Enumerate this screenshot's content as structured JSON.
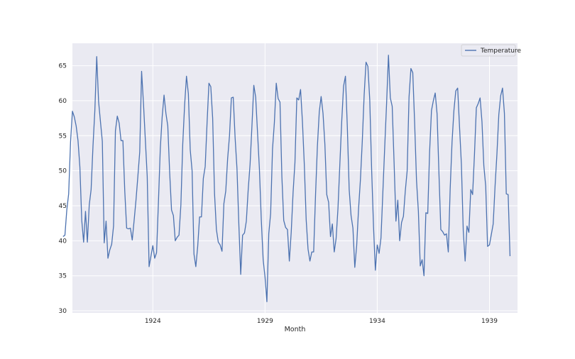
{
  "chart_data": {
    "type": "line",
    "xlabel": "Month",
    "ylabel": "",
    "title": "",
    "grid": true,
    "legend_position": "top-right",
    "xlim": [
      "1920-06",
      "1940-04"
    ],
    "ylim": [
      29.7,
      68.2
    ],
    "x_ticks": [
      {
        "label": "1924",
        "value": "1924-01"
      },
      {
        "label": "1929",
        "value": "1929-01"
      },
      {
        "label": "1934",
        "value": "1934-01"
      },
      {
        "label": "1939",
        "value": "1939-01"
      }
    ],
    "y_ticks": [
      30,
      35,
      40,
      45,
      50,
      55,
      60,
      65
    ],
    "start_month": "1920-01",
    "series": [
      {
        "name": "Temperature",
        "color": "#4c72b0",
        "values": [
          40.6,
          40.8,
          44.4,
          46.7,
          54.1,
          58.5,
          57.7,
          56.4,
          54.3,
          50.5,
          42.9,
          39.8,
          44.2,
          39.8,
          45.1,
          47.3,
          53.5,
          58.6,
          66.3,
          59.9,
          57.0,
          54.2,
          39.7,
          42.8,
          37.5,
          38.7,
          39.5,
          42.1,
          55.7,
          57.8,
          56.8,
          54.3,
          54.3,
          47.1,
          41.8,
          41.7,
          41.8,
          40.1,
          42.9,
          45.8,
          49.2,
          52.7,
          64.2,
          59.6,
          54.4,
          49.2,
          36.3,
          37.8,
          39.3,
          37.5,
          38.3,
          45.5,
          53.2,
          57.7,
          60.8,
          58.2,
          56.4,
          49.8,
          44.4,
          43.6,
          40.0,
          40.5,
          40.8,
          45.1,
          53.8,
          59.4,
          63.5,
          61.0,
          53.0,
          50.0,
          38.1,
          36.3,
          39.2,
          43.4,
          43.4,
          48.9,
          50.6,
          56.8,
          62.5,
          62.0,
          57.5,
          46.7,
          41.6,
          39.8,
          39.4,
          38.5,
          45.3,
          47.1,
          51.7,
          55.0,
          60.4,
          60.5,
          54.7,
          50.3,
          42.3,
          35.2,
          40.8,
          41.1,
          42.8,
          47.3,
          50.9,
          56.4,
          62.2,
          60.5,
          55.4,
          50.2,
          43.0,
          37.3,
          34.8,
          31.3,
          41.0,
          43.9,
          53.1,
          56.9,
          62.5,
          60.3,
          59.8,
          49.2,
          42.9,
          41.9,
          41.6,
          37.1,
          41.2,
          46.9,
          51.2,
          60.4,
          60.1,
          61.6,
          57.0,
          50.9,
          43.0,
          38.8,
          37.1,
          38.4,
          38.4,
          46.5,
          53.5,
          58.4,
          60.6,
          58.2,
          53.8,
          46.6,
          45.5,
          40.6,
          42.4,
          38.4,
          40.3,
          44.6,
          50.9,
          57.0,
          62.1,
          63.5,
          56.3,
          47.3,
          43.6,
          41.8,
          36.2,
          39.3,
          44.5,
          48.7,
          54.2,
          60.8,
          65.5,
          64.9,
          60.1,
          50.2,
          42.1,
          35.8,
          39.4,
          38.2,
          40.4,
          46.9,
          53.4,
          59.6,
          66.5,
          60.4,
          59.2,
          51.2,
          42.8,
          45.8,
          40.0,
          42.6,
          43.5,
          47.1,
          50.0,
          60.5,
          64.6,
          64.0,
          56.8,
          48.6,
          44.2,
          36.4,
          37.3,
          35.0,
          44.0,
          43.9,
          52.7,
          58.6,
          60.0,
          61.1,
          58.1,
          49.6,
          41.6,
          41.3,
          40.8,
          41.0,
          38.4,
          47.4,
          54.1,
          58.6,
          61.4,
          61.8,
          56.3,
          50.9,
          41.4,
          37.1,
          42.1,
          41.2,
          47.3,
          46.6,
          52.4,
          59.0,
          59.6,
          60.4,
          57.0,
          50.7,
          47.8,
          39.2,
          39.4,
          40.9,
          42.4,
          47.8,
          52.4,
          58.0,
          60.7,
          61.8,
          58.2,
          46.7,
          46.6,
          37.8
        ]
      }
    ]
  }
}
